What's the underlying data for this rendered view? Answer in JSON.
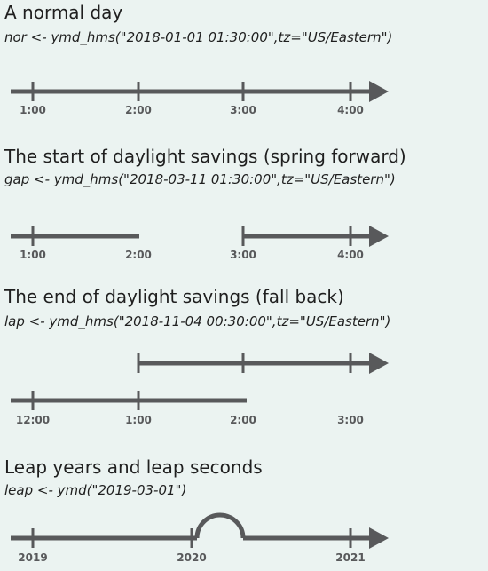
{
  "sections": [
    {
      "title": "A normal day",
      "code": "nor <- ymd_hms(\"2018-01-01 01:30:00\",tz=\"US/Eastern\")",
      "ticks": [
        "1:00",
        "2:00",
        "3:00",
        "4:00"
      ]
    },
    {
      "title": "The start of daylight savings (spring forward)",
      "code": "gap <- ymd_hms(\"2018-03-11 01:30:00\",tz=\"US/Eastern\")",
      "ticks": [
        "1:00",
        "2:00",
        "3:00",
        "4:00"
      ]
    },
    {
      "title": "The end of daylight savings (fall back)",
      "code": "lap <- ymd_hms(\"2018-11-04 00:30:00\",tz=\"US/Eastern\")",
      "ticks": [
        "12:00",
        "1:00",
        "2:00",
        "3:00"
      ]
    },
    {
      "title": "Leap years and leap seconds",
      "code": "leap <- ymd(\"2019-03-01\")",
      "ticks": [
        "2019",
        "2020",
        "2021"
      ]
    }
  ],
  "colors": {
    "background": "#ebf3f1",
    "timeline": "#58595b",
    "text": "#1f1f1f"
  }
}
